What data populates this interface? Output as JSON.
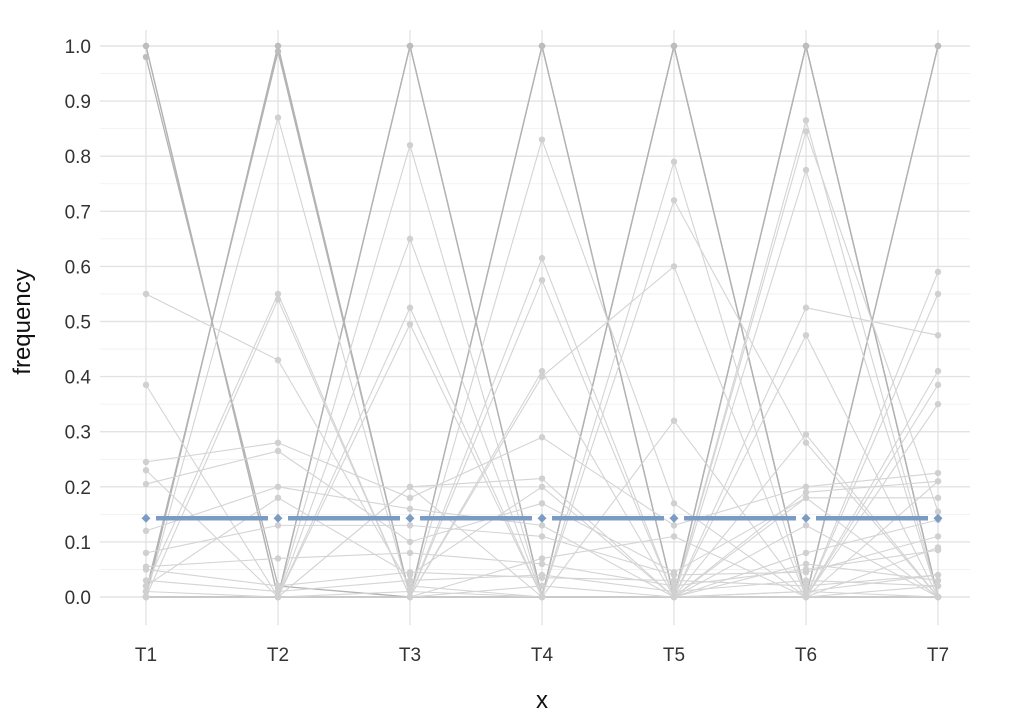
{
  "chart_data": {
    "type": "line",
    "xlabel": "x",
    "ylabel": "frequency",
    "categories": [
      "T1",
      "T2",
      "T3",
      "T4",
      "T5",
      "T6",
      "T7"
    ],
    "ylim": [
      -0.05,
      1.04
    ],
    "y_ticks": [
      0.0,
      0.1,
      0.2,
      0.3,
      0.4,
      0.5,
      0.6,
      0.7,
      0.8,
      0.9,
      1.0
    ],
    "y_tick_labels": [
      "0.0",
      "0.1",
      "0.2",
      "0.3",
      "0.4",
      "0.5",
      "0.6",
      "0.7",
      "0.8",
      "0.9",
      "1.0"
    ],
    "grid": true,
    "legend": "none",
    "colors": {
      "reference": "#7a9cc4",
      "background_series": "#bdbdbd"
    },
    "reference_series": {
      "values": [
        0.143,
        0.143,
        0.143,
        0.143,
        0.143,
        0.143,
        0.143
      ]
    },
    "series": [
      {
        "values": [
          1.0,
          0.0,
          1.0,
          0.0,
          1.0,
          0.0,
          1.0
        ],
        "emphasis": "dark"
      },
      {
        "values": [
          0.0,
          1.0,
          0.0,
          1.0,
          0.0,
          1.0,
          0.0
        ],
        "emphasis": "dark"
      },
      {
        "values": [
          1.0,
          0.0,
          0.0,
          1.0,
          0.0,
          1.0,
          0.0
        ],
        "emphasis": "dark"
      },
      {
        "values": [
          0.0,
          1.0,
          0.0,
          0.0,
          1.0,
          0.0,
          1.0
        ],
        "emphasis": "dark"
      },
      {
        "values": [
          0.0,
          0.0,
          1.0,
          0.0,
          1.0,
          0.0,
          0.0
        ],
        "emphasis": "dark"
      },
      {
        "values": [
          0.0,
          0.0,
          1.0,
          0.0,
          0.0,
          1.0,
          0.0
        ],
        "emphasis": "dark"
      },
      {
        "values": [
          0.98,
          0.02,
          0.0,
          0.0,
          0.0,
          0.0,
          0.0
        ],
        "emphasis": "dark"
      },
      {
        "values": [
          0.01,
          0.99,
          0.0,
          0.0,
          0.0,
          0.0,
          0.0
        ],
        "emphasis": "dark"
      },
      {
        "values": [
          0.0,
          0.0,
          0.0,
          1.0,
          0.0,
          0.0,
          0.0
        ],
        "emphasis": "dark"
      },
      {
        "values": [
          0.0,
          0.0,
          0.0,
          0.0,
          1.0,
          0.0,
          0.0
        ],
        "emphasis": "dark"
      },
      {
        "values": [
          0.0,
          0.0,
          0.0,
          0.0,
          0.0,
          1.0,
          0.0
        ],
        "emphasis": "dark"
      },
      {
        "values": [
          0.0,
          0.0,
          0.0,
          0.0,
          0.0,
          0.0,
          1.0
        ],
        "emphasis": "dark"
      },
      {
        "values": [
          0.55,
          0.43,
          0.02,
          0.0,
          0.0,
          0.0,
          0.0
        ],
        "emphasis": "light"
      },
      {
        "values": [
          0.385,
          0.0,
          0.2,
          0.0,
          0.32,
          0.0,
          0.09
        ],
        "emphasis": "light"
      },
      {
        "values": [
          0.0,
          0.87,
          0.0,
          0.0,
          0.0,
          0.13,
          0.0
        ],
        "emphasis": "light"
      },
      {
        "values": [
          0.02,
          0.55,
          0.0,
          0.41,
          0.0,
          0.0,
          0.02
        ],
        "emphasis": "light"
      },
      {
        "values": [
          0.0,
          0.54,
          0.0,
          0.0,
          0.0,
          0.0,
          0.0
        ],
        "emphasis": "light"
      },
      {
        "values": [
          0.0,
          0.0,
          0.82,
          0.0,
          0.0,
          0.18,
          0.0
        ],
        "emphasis": "light"
      },
      {
        "values": [
          0.0,
          0.0,
          0.65,
          0.0,
          0.0,
          0.0,
          0.35
        ],
        "emphasis": "light"
      },
      {
        "values": [
          0.0,
          0.0,
          0.525,
          0.0,
          0.0,
          0.475,
          0.0
        ],
        "emphasis": "light"
      },
      {
        "values": [
          0.0,
          0.0,
          0.495,
          0.0,
          0.0,
          0.0,
          0.0
        ],
        "emphasis": "light"
      },
      {
        "values": [
          0.0,
          0.0,
          0.0,
          0.83,
          0.17,
          0.0,
          0.0
        ],
        "emphasis": "light"
      },
      {
        "values": [
          0.0,
          0.0,
          0.0,
          0.615,
          0.0,
          0.0,
          0.385
        ],
        "emphasis": "light"
      },
      {
        "values": [
          0.0,
          0.0,
          0.0,
          0.575,
          0.0,
          0.0,
          0.0
        ],
        "emphasis": "light"
      },
      {
        "values": [
          0.0,
          0.0,
          0.0,
          0.4,
          0.6,
          0.0,
          0.0
        ],
        "emphasis": "light"
      },
      {
        "values": [
          0.0,
          0.0,
          0.0,
          0.0,
          0.79,
          0.0,
          0.21
        ],
        "emphasis": "light"
      },
      {
        "values": [
          0.0,
          0.0,
          0.0,
          0.0,
          0.72,
          0.28,
          0.0
        ],
        "emphasis": "light"
      },
      {
        "values": [
          0.0,
          0.0,
          0.0,
          0.0,
          0.0,
          0.865,
          0.0
        ],
        "emphasis": "light"
      },
      {
        "values": [
          0.0,
          0.0,
          0.0,
          0.0,
          0.0,
          0.845,
          0.155
        ],
        "emphasis": "light"
      },
      {
        "values": [
          0.0,
          0.0,
          0.0,
          0.0,
          0.0,
          0.775,
          0.0
        ],
        "emphasis": "light"
      },
      {
        "values": [
          0.0,
          0.0,
          0.0,
          0.0,
          0.0,
          0.525,
          0.475
        ],
        "emphasis": "light"
      },
      {
        "values": [
          0.0,
          0.0,
          0.0,
          0.0,
          0.0,
          0.295,
          0.0
        ],
        "emphasis": "light"
      },
      {
        "values": [
          0.0,
          0.0,
          0.0,
          0.0,
          0.0,
          0.0,
          0.59
        ],
        "emphasis": "light"
      },
      {
        "values": [
          0.0,
          0.0,
          0.0,
          0.0,
          0.0,
          0.0,
          0.55
        ],
        "emphasis": "light"
      },
      {
        "values": [
          0.0,
          0.0,
          0.0,
          0.0,
          0.0,
          0.0,
          0.41
        ],
        "emphasis": "light"
      },
      {
        "values": [
          0.245,
          0.28,
          0.18,
          0.29,
          0.13,
          0.2,
          0.225
        ],
        "emphasis": "light"
      },
      {
        "values": [
          0.23,
          0.0,
          0.2,
          0.215,
          0.0,
          0.19,
          0.21
        ],
        "emphasis": "light"
      },
      {
        "values": [
          0.205,
          0.265,
          0.1,
          0.17,
          0.045,
          0.18,
          0.18
        ],
        "emphasis": "light"
      },
      {
        "values": [
          0.12,
          0.2,
          0.16,
          0.13,
          0.0,
          0.08,
          0.14
        ],
        "emphasis": "light"
      },
      {
        "values": [
          0.08,
          0.13,
          0.13,
          0.11,
          0.04,
          0.045,
          0.11
        ],
        "emphasis": "light"
      },
      {
        "values": [
          0.055,
          0.07,
          0.08,
          0.06,
          0.02,
          0.05,
          0.085
        ],
        "emphasis": "light"
      },
      {
        "values": [
          0.05,
          0.02,
          0.045,
          0.035,
          0.03,
          0.02,
          0.04
        ],
        "emphasis": "light"
      },
      {
        "values": [
          0.03,
          0.01,
          0.03,
          0.04,
          0.01,
          0.03,
          0.02
        ],
        "emphasis": "light"
      },
      {
        "values": [
          0.02,
          0.18,
          0.04,
          0.2,
          0.0,
          0.01,
          0.04
        ],
        "emphasis": "light"
      },
      {
        "values": [
          0.01,
          0.0,
          0.0,
          0.07,
          0.11,
          0.0,
          0.0
        ],
        "emphasis": "light"
      },
      {
        "values": [
          0.0,
          0.0,
          0.0,
          0.02,
          0.0,
          0.06,
          0.03
        ],
        "emphasis": "light"
      },
      {
        "values": [
          0.0,
          0.0,
          0.01,
          0.0,
          0.0,
          0.01,
          0.0
        ],
        "emphasis": "light"
      }
    ]
  }
}
